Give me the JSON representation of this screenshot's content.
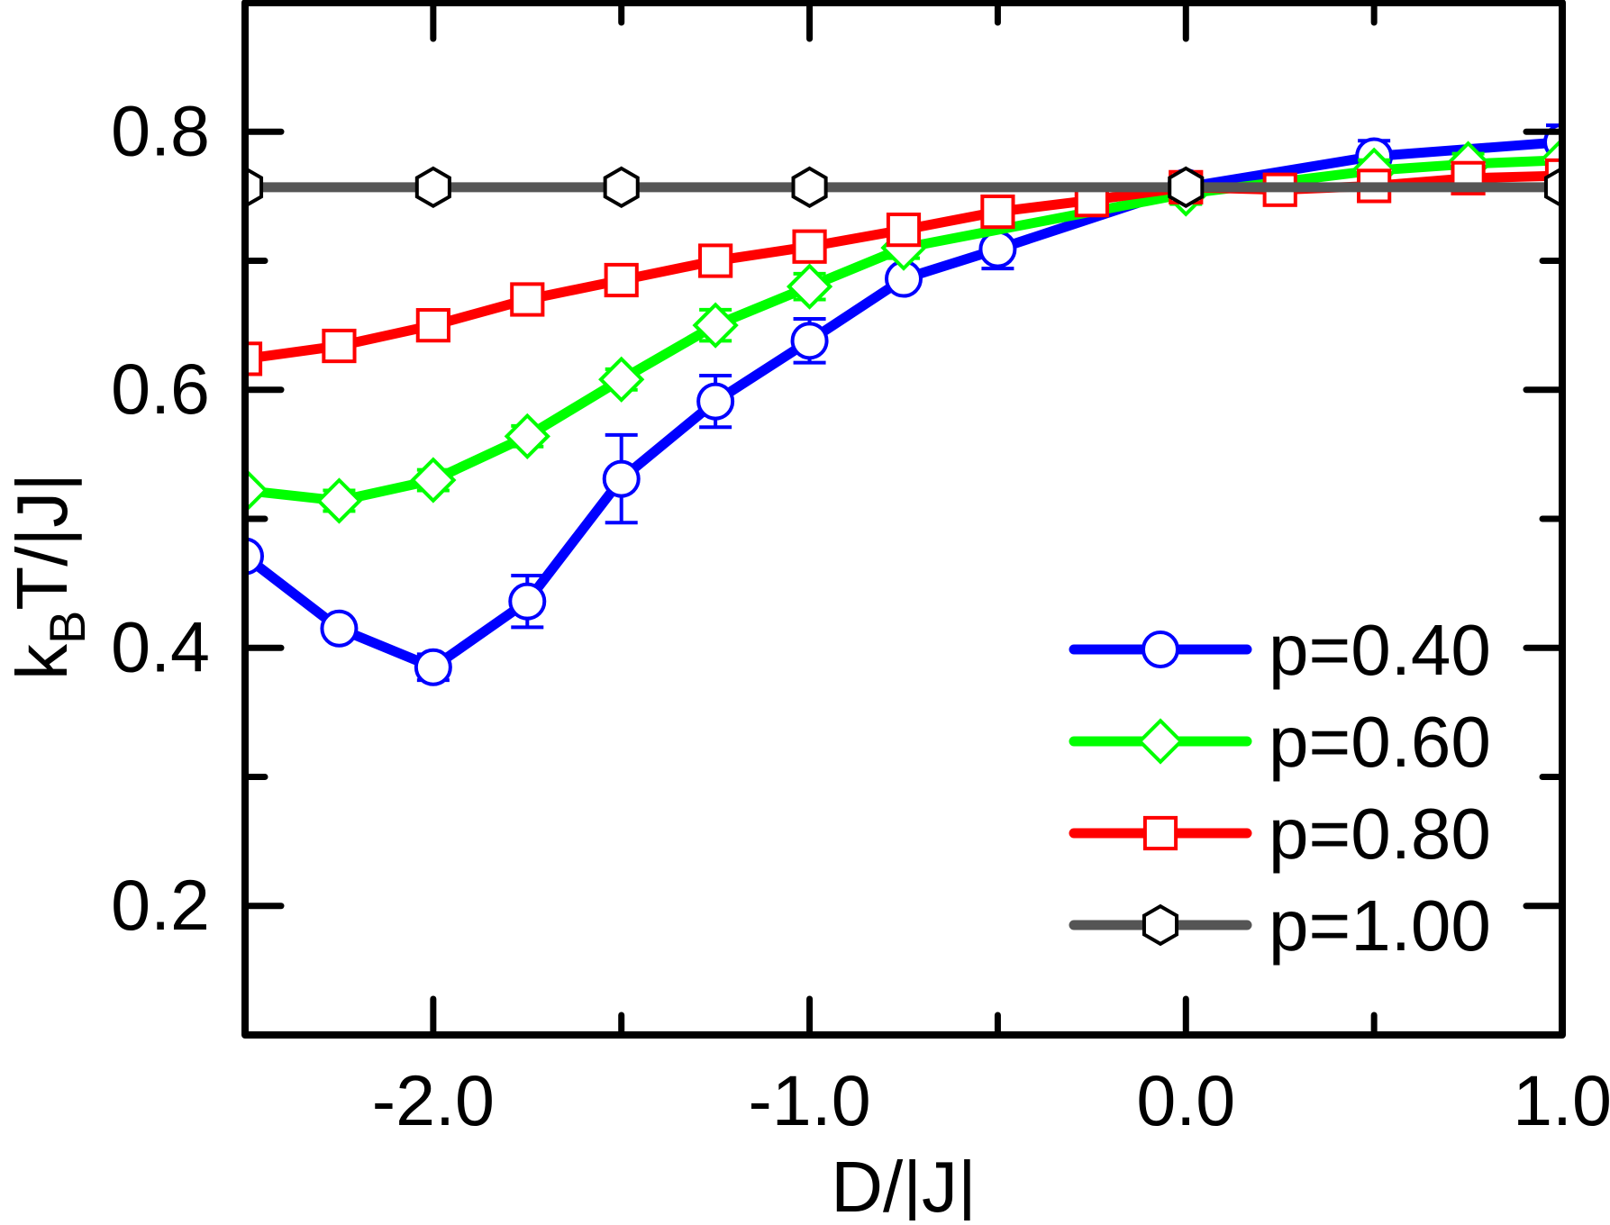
{
  "chart_data": {
    "type": "line",
    "title": "",
    "xlabel": "D/|J|",
    "ylabel": "k_B T/|J|",
    "ylabel_parts": {
      "main": "k",
      "sub": "B",
      "rest": "T/|J|"
    },
    "xlim": [
      -2.5,
      1.0
    ],
    "ylim": [
      0.1,
      0.9
    ],
    "x_ticks_major": [
      -2.0,
      -1.0,
      0.0,
      1.0
    ],
    "x_tick_labels": [
      "-2.0",
      "-1.0",
      "0.0",
      "1.0"
    ],
    "x_ticks_minor": [
      -1.5,
      -0.5,
      0.5
    ],
    "y_ticks_major": [
      0.2,
      0.4,
      0.6,
      0.8
    ],
    "y_tick_labels": [
      "0.2",
      "0.4",
      "0.6",
      "0.8"
    ],
    "y_ticks_minor": [
      0.3,
      0.5,
      0.7
    ],
    "grid": false,
    "legend_position": "lower right",
    "series": [
      {
        "name": "p=0.40",
        "color": "#0000ff",
        "marker": "circle",
        "line_style": "solid",
        "x": [
          -2.5,
          -2.25,
          -2.0,
          -1.75,
          -1.5,
          -1.25,
          -1.0,
          -0.75,
          -0.5,
          0.0,
          0.5,
          1.0
        ],
        "y": [
          0.471,
          0.415,
          0.385,
          0.436,
          0.531,
          0.591,
          0.638,
          0.686,
          0.709,
          0.757,
          0.781,
          0.792
        ],
        "yerr": [
          0.0,
          0.0,
          0.01,
          0.02,
          0.034,
          0.02,
          0.017,
          0.0,
          0.015,
          0.008,
          0.012,
          0.013
        ]
      },
      {
        "name": "p=0.60",
        "color": "#00ff00",
        "marker": "diamond",
        "line_style": "solid",
        "x": [
          -2.5,
          -2.25,
          -2.0,
          -1.75,
          -1.5,
          -1.25,
          -1.0,
          -0.75,
          0.0,
          0.5,
          0.75,
          1.0
        ],
        "y": [
          0.522,
          0.514,
          0.53,
          0.564,
          0.608,
          0.65,
          0.68,
          0.71,
          0.752,
          0.77,
          0.775,
          0.778
        ],
        "yerr": [
          0.0,
          0.008,
          0.008,
          0.008,
          0.008,
          0.012,
          0.01,
          0.008,
          0.008,
          0.008,
          0.008,
          0.0
        ]
      },
      {
        "name": "p=0.80",
        "color": "#ff0000",
        "marker": "square",
        "line_style": "dashed",
        "x": [
          -2.5,
          -2.25,
          -2.0,
          -1.75,
          -1.5,
          -1.25,
          -1.0,
          -0.75,
          -0.5,
          -0.25,
          0.0,
          0.25,
          0.5,
          0.75,
          1.0
        ],
        "y": [
          0.624,
          0.634,
          0.65,
          0.67,
          0.685,
          0.7,
          0.711,
          0.724,
          0.738,
          0.747,
          0.757,
          0.755,
          0.758,
          0.764,
          0.766
        ],
        "yerr": [
          0.0,
          0.0,
          0.0,
          0.008,
          0.008,
          0.008,
          0.008,
          0.008,
          0.008,
          0.008,
          0.008,
          0.006,
          0.006,
          0.006,
          0.006
        ]
      },
      {
        "name": "p=1.00",
        "color": "#555555",
        "marker_color": "#000000",
        "marker": "hexagon",
        "line_style": "solid",
        "x": [
          -2.5,
          -2.0,
          -1.5,
          -1.0,
          0.0,
          1.0
        ],
        "y": [
          0.757,
          0.757,
          0.757,
          0.757,
          0.757,
          0.757
        ],
        "yerr": [
          0.004,
          0.004,
          0.004,
          0.004,
          0.004,
          0.004
        ]
      }
    ]
  },
  "legend": {
    "items": [
      {
        "label": "p=0.40",
        "color": "#0000ff",
        "marker": "circle"
      },
      {
        "label": "p=0.60",
        "color": "#00ff00",
        "marker": "diamond"
      },
      {
        "label": "p=0.80",
        "color": "#ff0000",
        "marker": "square"
      },
      {
        "label": "p=1.00",
        "color": "#555555",
        "marker": "hexagon"
      }
    ]
  }
}
